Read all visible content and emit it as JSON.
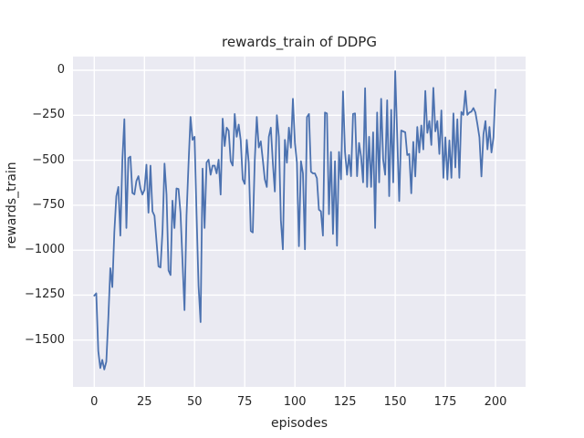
{
  "window": {
    "title": "rewards_train of DDPG figure"
  },
  "chart_data": {
    "type": "line",
    "title": "rewards_train of DDPG",
    "xlabel": "episodes",
    "ylabel": "rewards_train",
    "grid": true,
    "legend": "none",
    "plot_background": "#eaeaf2",
    "figure_background": "#ffffff",
    "gridline_color": "#ffffff",
    "line_color": "#4c72b0",
    "text_color": "#262626",
    "xlim": [
      -10.6,
      215.0
    ],
    "ylim": [
      -1760,
      76
    ],
    "xticks": [
      0,
      25,
      50,
      75,
      100,
      125,
      150,
      175,
      200
    ],
    "xtick_labels": [
      "0",
      "25",
      "50",
      "75",
      "100",
      "125",
      "150",
      "175",
      "200"
    ],
    "yticks": [
      0,
      -250,
      -500,
      -750,
      -1000,
      -1250,
      -1500
    ],
    "ytick_labels": [
      "0",
      "−250",
      "−500",
      "−750",
      "−1000",
      "−1250",
      "−1500"
    ],
    "x_start": 0,
    "x_step": 1,
    "series": [
      {
        "name": "rewards_train",
        "values": [
          -1253,
          -1240,
          -1560,
          -1655,
          -1610,
          -1663,
          -1620,
          -1380,
          -1100,
          -1205,
          -900,
          -700,
          -649,
          -919,
          -500,
          -272,
          -877,
          -488,
          -480,
          -682,
          -690,
          -615,
          -589,
          -657,
          -691,
          -665,
          -525,
          -792,
          -530,
          -784,
          -809,
          -950,
          -1090,
          -1096,
          -893,
          -519,
          -691,
          -1113,
          -1138,
          -725,
          -877,
          -657,
          -660,
          -792,
          -1062,
          -1333,
          -809,
          -522,
          -260,
          -387,
          -370,
          -800,
          -1200,
          -1400,
          -547,
          -877,
          -513,
          -497,
          -581,
          -530,
          -530,
          -573,
          -497,
          -691,
          -269,
          -421,
          -319,
          -336,
          -505,
          -530,
          -243,
          -370,
          -302,
          -390,
          -606,
          -632,
          -387,
          -514,
          -893,
          -902,
          -500,
          -260,
          -429,
          -395,
          -497,
          -606,
          -649,
          -370,
          -319,
          -514,
          -674,
          -250,
          -370,
          -834,
          -995,
          -387,
          -514,
          -319,
          -430,
          -159,
          -404,
          -514,
          -978,
          -505,
          -573,
          -995,
          -260,
          -243,
          -564,
          -573,
          -573,
          -600,
          -775,
          -784,
          -919,
          -235,
          -240,
          -800,
          -454,
          -910,
          -505,
          -975,
          -454,
          -606,
          -117,
          -454,
          -581,
          -471,
          -589,
          -243,
          -240,
          -589,
          -404,
          -480,
          -623,
          -100,
          -649,
          -370,
          -649,
          -345,
          -877,
          -235,
          -623,
          -159,
          -497,
          -581,
          -167,
          -700,
          -220,
          -623,
          -5,
          -366,
          -727,
          -335,
          -340,
          -345,
          -471,
          -465,
          -684,
          -398,
          -590,
          -315,
          -457,
          -307,
          -440,
          -115,
          -348,
          -282,
          -415,
          -98,
          -340,
          -282,
          -465,
          -223,
          -598,
          -373,
          -607,
          -390,
          -598,
          -240,
          -540,
          -273,
          -598,
          -232,
          -248,
          -115,
          -248,
          -235,
          -230,
          -210,
          -235,
          -300,
          -373,
          -590,
          -357,
          -282,
          -440,
          -315,
          -457,
          -373,
          -107
        ]
      }
    ]
  }
}
